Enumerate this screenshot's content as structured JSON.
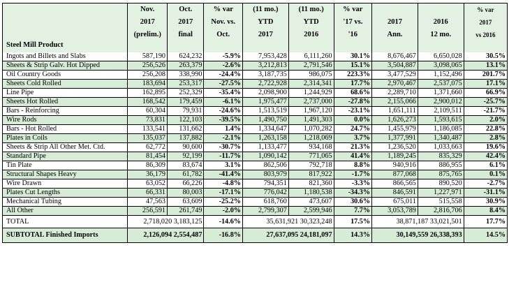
{
  "headers": [
    {
      "key": "product",
      "lines": [
        "",
        "",
        "Steel Mill Product"
      ]
    },
    {
      "key": "nov2017",
      "lines": [
        "Nov.",
        "2017",
        "(prelim.)"
      ]
    },
    {
      "key": "oct2017",
      "lines": [
        "Oct.",
        "2017",
        "final"
      ]
    },
    {
      "key": "var_nov_oct",
      "lines": [
        "% var",
        "Nov. vs.",
        "Oct."
      ]
    },
    {
      "key": "ytd2017",
      "lines": [
        "(11 mo.)",
        "YTD",
        "2017"
      ]
    },
    {
      "key": "ytd2016",
      "lines": [
        "(11 mo.)",
        "YTD",
        "2016"
      ]
    },
    {
      "key": "var_ytd",
      "lines": [
        "% var",
        "'17 vs.",
        "'16"
      ]
    },
    {
      "key": "ann2017",
      "lines": [
        "",
        "2017",
        "Ann."
      ]
    },
    {
      "key": "mo12_2016",
      "lines": [
        "",
        "2016",
        "12 mo."
      ]
    },
    {
      "key": "var_ann",
      "lines": [
        "% var",
        "2017",
        "vs 2016"
      ]
    }
  ],
  "rows": [
    {
      "name": "Ingots and Billets and Slabs",
      "nov": "587,190",
      "oct": "624,232",
      "var1": "-5.9%",
      "ytd17": "7,953,428",
      "ytd16": "6,111,260",
      "var2": "30.1%",
      "ann": "8,676,467",
      "m12": "6,650,028",
      "var3": "30.5%"
    },
    {
      "name": "Sheets & Strip Galv. Hot Dipped",
      "nov": "256,526",
      "oct": "263,379",
      "var1": "-2.6%",
      "ytd17": "3,212,813",
      "ytd16": "2,791,546",
      "var2": "15.1%",
      "ann": "3,504,887",
      "m12": "3,098,065",
      "var3": "13.1%"
    },
    {
      "name": "Oil Country Goods",
      "nov": "256,208",
      "oct": "338,990",
      "var1": "-24.4%",
      "ytd17": "3,187,735",
      "ytd16": "986,075",
      "var2": "223.3%",
      "ann": "3,477,529",
      "m12": "1,152,496",
      "var3": "201.7%"
    },
    {
      "name": "Sheets Cold Rolled",
      "nov": "183,694",
      "oct": "253,317",
      "var1": "-27.5%",
      "ytd17": "2,722,928",
      "ytd16": "2,314,341",
      "var2": "17.7%",
      "ann": "2,970,467",
      "m12": "2,537,075",
      "var3": "17.1%"
    },
    {
      "name": "Line Pipe",
      "nov": "162,895",
      "oct": "252,329",
      "var1": "-35.4%",
      "ytd17": "2,098,900",
      "ytd16": "1,244,929",
      "var2": "68.6%",
      "ann": "2,289,710",
      "m12": "1,371,660",
      "var3": "66.9%"
    },
    {
      "name": "Sheets Hot Rolled",
      "nov": "168,542",
      "oct": "179,459",
      "var1": "-6.1%",
      "ytd17": "1,975,477",
      "ytd16": "2,737,000",
      "var2": "-27.8%",
      "ann": "2,155,066",
      "m12": "2,900,012",
      "var3": "-25.7%"
    },
    {
      "name": "Bars - Reinforcing",
      "nov": "60,304",
      "oct": "79,931",
      "var1": "-24.6%",
      "ytd17": "1,513,519",
      "ytd16": "1,967,120",
      "var2": "-23.1%",
      "ann": "1,651,111",
      "m12": "2,109,511",
      "var3": "-21.7%"
    },
    {
      "name": "Wire Rods",
      "nov": "73,831",
      "oct": "122,103",
      "var1": "-39.5%",
      "ytd17": "1,490,750",
      "ytd16": "1,491,303",
      "var2": "0.0%",
      "ann": "1,626,273",
      "m12": "1,593,615",
      "var3": "2.0%"
    },
    {
      "name": "Bars - Hot Rolled",
      "nov": "133,541",
      "oct": "131,662",
      "var1": "1.4%",
      "ytd17": "1,334,647",
      "ytd16": "1,070,282",
      "var2": "24.7%",
      "ann": "1,455,979",
      "m12": "1,186,085",
      "var3": "22.8%"
    },
    {
      "name": "Plates in Coils",
      "nov": "135,037",
      "oct": "137,882",
      "var1": "-2.1%",
      "ytd17": "1,263,158",
      "ytd16": "1,218,069",
      "var2": "3.7%",
      "ann": "1,377,991",
      "m12": "1,340,487",
      "var3": "2.8%"
    },
    {
      "name": "Sheets & Strip All Other Met. Ctd.",
      "nov": "62,772",
      "oct": "90,600",
      "var1": "-30.7%",
      "ytd17": "1,133,477",
      "ytd16": "934,168",
      "var2": "21.3%",
      "ann": "1,236,520",
      "m12": "1,033,663",
      "var3": "19.6%"
    },
    {
      "name": "Standard Pipe",
      "nov": "81,454",
      "oct": "92,199",
      "var1": "-11.7%",
      "ytd17": "1,090,142",
      "ytd16": "771,065",
      "var2": "41.4%",
      "ann": "1,189,245",
      "m12": "835,329",
      "var3": "42.4%"
    },
    {
      "name": "Tin Plate",
      "nov": "86,309",
      "oct": "83,674",
      "var1": "3.1%",
      "ytd17": "862,506",
      "ytd16": "792,718",
      "var2": "8.8%",
      "ann": "940,916",
      "m12": "886,955",
      "var3": "6.1%"
    },
    {
      "name": "Structural Shapes Heavy",
      "nov": "36,179",
      "oct": "61,782",
      "var1": "-41.4%",
      "ytd17": "803,979",
      "ytd16": "817,922",
      "var2": "-1.7%",
      "ann": "877,068",
      "m12": "875,765",
      "var3": "0.1%"
    },
    {
      "name": "Wire Drawn",
      "nov": "63,052",
      "oct": "66,226",
      "var1": "-4.8%",
      "ytd17": "794,351",
      "ytd16": "821,360",
      "var2": "-3.3%",
      "ann": "866,565",
      "m12": "890,520",
      "var3": "-2.7%"
    },
    {
      "name": "Plates Cut Lengths",
      "nov": "66,331",
      "oct": "80,003",
      "var1": "-17.1%",
      "ytd17": "776,042",
      "ytd16": "1,180,538",
      "var2": "-34.3%",
      "ann": "846,591",
      "m12": "1,227,971",
      "var3": "-31.1%"
    },
    {
      "name": "Mechanical Tubing",
      "nov": "47,563",
      "oct": "63,609",
      "var1": "-25.2%",
      "ytd17": "618,760",
      "ytd16": "473,607",
      "var2": "30.6%",
      "ann": "675,011",
      "m12": "515,558",
      "var3": "30.9%"
    },
    {
      "name": "All Other",
      "nov": "256,591",
      "oct": "261,749",
      "var1": "-2.0%",
      "ytd17": "2,799,307",
      "ytd16": "2,599,946",
      "var2": "7.7%",
      "ann": "3,053,789",
      "m12": "2,816,706",
      "var3": "8.4%"
    }
  ],
  "total": {
    "name": "TOTAL",
    "nov_oct": "2,718,020 3,183,125",
    "var1": "-14.6%",
    "ytd": "35,631,921 30,323,248",
    "var2": "17.5%",
    "ann": "38,871,187 33,021,501",
    "var3": "17.7%"
  },
  "subtotal": {
    "name": "SUBTOTAL  Finished Imports",
    "nov_oct": "2,126,094 2,554,487",
    "var1": "-16.8%",
    "ytd": "27,637,095 24,181,097",
    "var2": "14.3%",
    "ann": "30,149,559 26,338,393",
    "var3": "14.5%"
  },
  "colors": {
    "header_bg": "#e2f1e2",
    "row_shade": "#d6ecd6",
    "border": "#000000"
  }
}
